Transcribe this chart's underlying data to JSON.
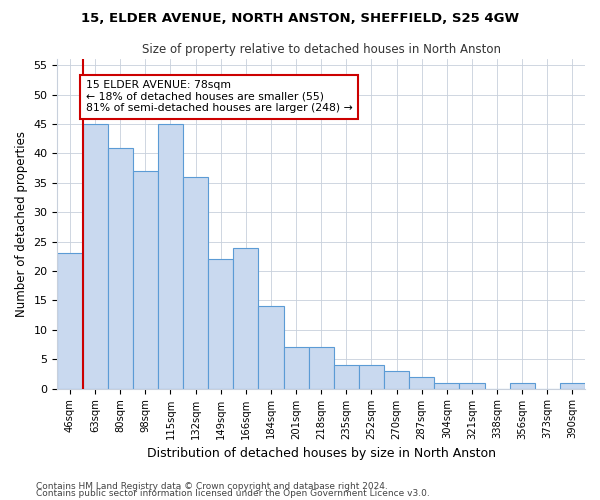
{
  "title1": "15, ELDER AVENUE, NORTH ANSTON, SHEFFIELD, S25 4GW",
  "title2": "Size of property relative to detached houses in North Anston",
  "xlabel": "Distribution of detached houses by size in North Anston",
  "ylabel": "Number of detached properties",
  "categories": [
    "46sqm",
    "63sqm",
    "80sqm",
    "98sqm",
    "115sqm",
    "132sqm",
    "149sqm",
    "166sqm",
    "184sqm",
    "201sqm",
    "218sqm",
    "235sqm",
    "252sqm",
    "270sqm",
    "287sqm",
    "304sqm",
    "321sqm",
    "338sqm",
    "356sqm",
    "373sqm",
    "390sqm"
  ],
  "values": [
    23,
    45,
    41,
    37,
    45,
    36,
    22,
    24,
    14,
    7,
    7,
    4,
    4,
    3,
    2,
    1,
    1,
    0,
    1,
    0,
    1
  ],
  "bar_color": "#c9d9ef",
  "bar_edge_color": "#5b9bd5",
  "property_line_x": 0.5,
  "property_line_color": "#cc0000",
  "annotation_text": "15 ELDER AVENUE: 78sqm\n← 18% of detached houses are smaller (55)\n81% of semi-detached houses are larger (248) →",
  "annotation_box_color": "#ffffff",
  "annotation_box_edge": "#cc0000",
  "footer1": "Contains HM Land Registry data © Crown copyright and database right 2024.",
  "footer2": "Contains public sector information licensed under the Open Government Licence v3.0.",
  "ylim": [
    0,
    56
  ],
  "yticks": [
    0,
    5,
    10,
    15,
    20,
    25,
    30,
    35,
    40,
    45,
    50,
    55
  ],
  "background_color": "#ffffff",
  "grid_color": "#c8d0dc"
}
